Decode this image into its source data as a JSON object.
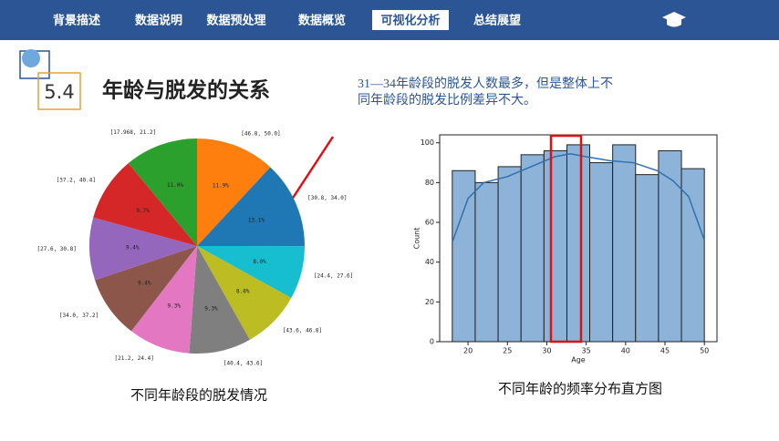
{
  "nav": [
    "背景描述",
    "数据说明",
    "数据预处理",
    "数据概览",
    "可视化分析",
    "总结展望"
  ],
  "nav_active": 4,
  "section": {
    "number": "5.4",
    "title": "年龄与脱发的关系"
  },
  "note": [
    "31—34年龄段的脱发人数最多，但是整体上不",
    "同年龄段的脱发比例差异不大。"
  ],
  "chart_data": [
    {
      "type": "pie",
      "caption": "不同年龄段的脱发情况",
      "categories": [
        "[46.8, 50.0]",
        "[30.8, 34.0]",
        "[24.4, 27.6]",
        "[43.6, 46.8]",
        "[40.4, 43.6]",
        "[21.2, 24.4]",
        "[34.0, 37.2]",
        "[27.6, 30.8]",
        "[37.2, 40.4]",
        "[17.968, 21.2]"
      ],
      "values": [
        11.9,
        13.1,
        8.0,
        8.8,
        9.3,
        9.3,
        9.4,
        9.4,
        9.7,
        11.0
      ],
      "value_labels": [
        "11.9%",
        "13.1%",
        "8.0%",
        "8.8%",
        "9.3%",
        "9.3%",
        "9.4%",
        "9.4%",
        "9.7%",
        "11.0%"
      ],
      "colors": [
        "#ff7f0e",
        "#1f77b4",
        "#17becf",
        "#bcbd22",
        "#7f7f7f",
        "#e377c2",
        "#8c564b",
        "#9467bd",
        "#d62728",
        "#2ca02c"
      ]
    },
    {
      "type": "histogram",
      "caption": "不同年龄的频率分布直方图",
      "x_label": "Age",
      "y_label": "Count",
      "bins": [
        18,
        20.91,
        23.82,
        26.73,
        29.64,
        32.55,
        35.45,
        38.36,
        41.27,
        44.18,
        47.09,
        50
      ],
      "values": [
        86,
        80,
        88,
        94,
        96,
        99,
        90,
        99,
        84,
        96,
        87
      ],
      "color": "#8db4d8",
      "kde": {
        "x": [
          18,
          20,
          22,
          25,
          28,
          31,
          33,
          35,
          38,
          41,
          44,
          46,
          48,
          50
        ],
        "values": [
          50,
          72,
          80,
          83,
          88,
          93,
          94.5,
          93,
          91,
          90,
          86,
          81,
          73,
          51
        ],
        "color": "#2f70b0"
      },
      "xlim": [
        16.4,
        51.6
      ],
      "ylim": [
        0,
        104
      ],
      "xticks": [
        20,
        25,
        30,
        35,
        40,
        45,
        50
      ],
      "yticks": [
        0,
        20,
        40,
        60,
        80,
        100
      ]
    }
  ]
}
